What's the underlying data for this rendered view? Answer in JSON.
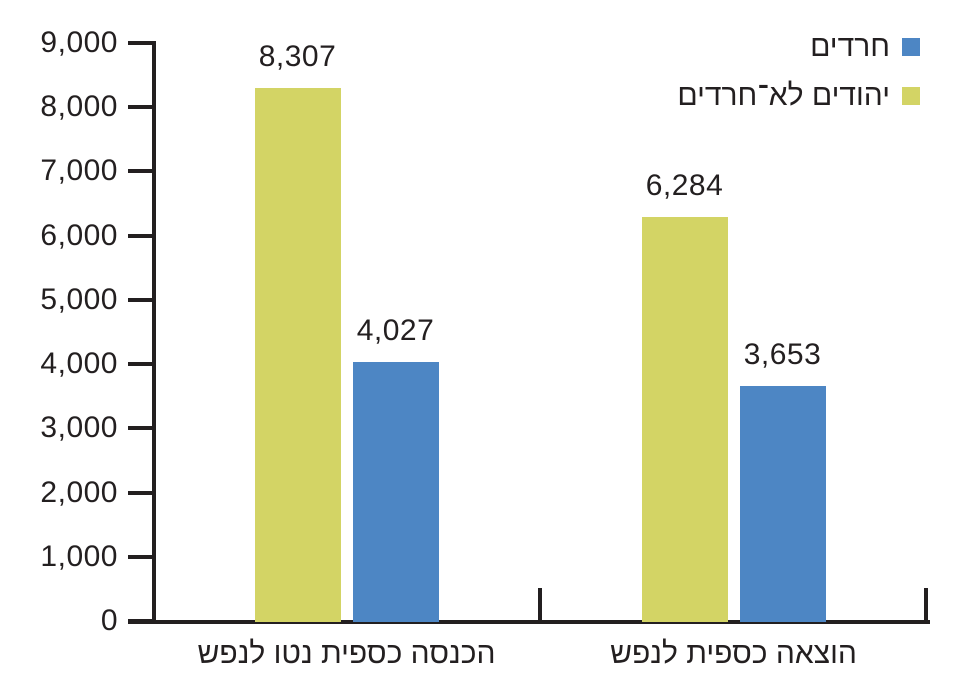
{
  "chart_data": {
    "type": "bar",
    "direction": "rtl",
    "title": "",
    "categories": [
      "הכנסה כספית נטו לנפש",
      "הוצאה כספית לנפש"
    ],
    "series": [
      {
        "name": "חרדים",
        "color": "#4d86c4",
        "values": [
          4027,
          3653
        ],
        "labels": [
          "4,027",
          "3,653"
        ]
      },
      {
        "name": "יהודים לא־חרדים",
        "color": "#d3d465",
        "values": [
          8307,
          6284
        ],
        "labels": [
          "8,307",
          "6,284"
        ]
      }
    ],
    "ylim": [
      0,
      9000
    ],
    "ytick_step": 1000,
    "yticks": [
      "0",
      "1,000",
      "2,000",
      "3,000",
      "4,000",
      "5,000",
      "6,000",
      "7,000",
      "8,000",
      "9,000"
    ],
    "legend_position": "top-right",
    "grid": false,
    "axis_color": "#231f20",
    "text_color": "#231f20",
    "background_color": "#ffffff"
  }
}
